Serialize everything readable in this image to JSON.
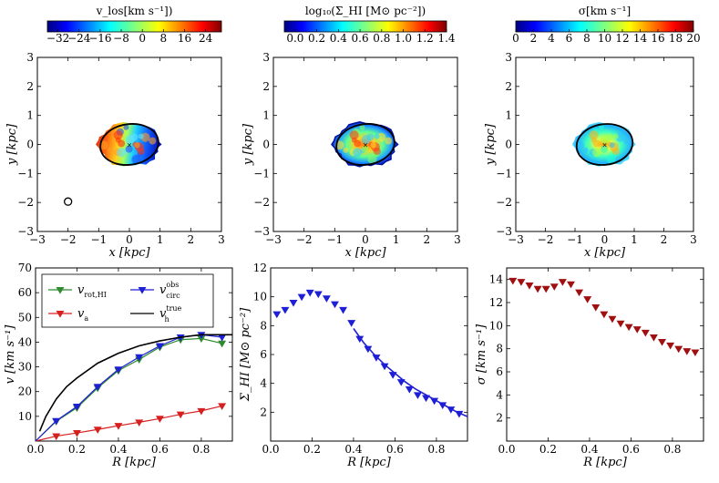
{
  "chart_data": [
    {
      "type": "heatmap",
      "panel": "top-left",
      "colorbar": {
        "label": "v_los[km s⁻¹])",
        "ticks": [
          -32,
          -24,
          -16,
          -8,
          0,
          8,
          16,
          24
        ],
        "range": [
          -36,
          30
        ],
        "colormap": "jet"
      },
      "xlabel": "x [kpc]",
      "ylabel": "y [kpc]",
      "xlim": [
        -3,
        3
      ],
      "ylim": [
        -3,
        3
      ],
      "xticks": [
        -3,
        -2,
        -1,
        0,
        1,
        2,
        3
      ],
      "yticks": [
        -3,
        -2,
        -1,
        0,
        1,
        2,
        3
      ],
      "ellipse": {
        "cx": 0,
        "cy": 0,
        "rx": 0.95,
        "ry": 0.7
      },
      "beam_marker": {
        "x": -2.0,
        "y": -1.97
      }
    },
    {
      "type": "heatmap",
      "panel": "top-middle",
      "colorbar": {
        "label": "log₁₀(Σ_HI [M⊙ pc⁻²])",
        "ticks": [
          0.0,
          0.2,
          0.4,
          0.6,
          0.8,
          1.0,
          1.2,
          1.4
        ],
        "range": [
          -0.1,
          1.4
        ],
        "colormap": "jet"
      },
      "xlabel": "x [kpc]",
      "ylabel": "y [kpc]",
      "xlim": [
        -3,
        3
      ],
      "ylim": [
        -3,
        3
      ],
      "xticks": [
        -3,
        -2,
        -1,
        0,
        1,
        2,
        3
      ],
      "yticks": [
        -3,
        -2,
        -1,
        0,
        1,
        2,
        3
      ],
      "ellipse": {
        "cx": 0,
        "cy": 0,
        "rx": 0.95,
        "ry": 0.7
      }
    },
    {
      "type": "heatmap",
      "panel": "top-right",
      "colorbar": {
        "label": "σ[km s⁻¹]",
        "ticks": [
          0,
          2,
          4,
          6,
          8,
          10,
          12,
          14,
          16,
          18,
          20
        ],
        "range": [
          0,
          20
        ],
        "colormap": "jet"
      },
      "xlabel": "x [kpc]",
      "ylabel": "y [kpc]",
      "xlim": [
        -3,
        3
      ],
      "ylim": [
        -3,
        3
      ],
      "xticks": [
        -3,
        -2,
        -1,
        0,
        1,
        2,
        3
      ],
      "yticks": [
        -3,
        -2,
        -1,
        0,
        1,
        2,
        3
      ],
      "ellipse": {
        "cx": 0,
        "cy": 0,
        "rx": 0.95,
        "ry": 0.7
      }
    },
    {
      "type": "line",
      "panel": "bottom-left",
      "xlabel": "R [kpc]",
      "ylabel": "v [km s⁻¹]",
      "xlim": [
        0,
        0.95
      ],
      "ylim": [
        0,
        70
      ],
      "xticks": [
        0.0,
        0.2,
        0.4,
        0.6,
        0.8
      ],
      "yticks": [
        10,
        20,
        30,
        40,
        50,
        60,
        70
      ],
      "legend_position": "top",
      "series": [
        {
          "name": "v_rot,HI",
          "color": "#2e8b2e",
          "marker": "triangle-down",
          "x": [
            0,
            0.1,
            0.2,
            0.3,
            0.4,
            0.5,
            0.6,
            0.7,
            0.8,
            0.9
          ],
          "y": [
            0,
            8,
            13.5,
            21.5,
            28.5,
            33,
            38,
            41,
            41.5,
            39.5
          ]
        },
        {
          "name": "v_a",
          "color": "#d62020",
          "marker": "triangle-down",
          "x": [
            0,
            0.1,
            0.2,
            0.3,
            0.4,
            0.5,
            0.6,
            0.7,
            0.8,
            0.9
          ],
          "y": [
            0,
            2,
            3.3,
            4.7,
            6.2,
            7.6,
            9.1,
            10.8,
            12.2,
            14.2
          ]
        },
        {
          "name": "v_circ^obs",
          "color": "#1f1fd6",
          "marker": "triangle-down",
          "x": [
            0,
            0.1,
            0.2,
            0.3,
            0.4,
            0.5,
            0.6,
            0.7,
            0.8,
            0.9
          ],
          "y": [
            0,
            8.2,
            14,
            22,
            29,
            34,
            38.5,
            42,
            43,
            42
          ]
        },
        {
          "name": "v_h^true",
          "color": "#000000",
          "marker": "none",
          "x": [
            0.02,
            0.05,
            0.1,
            0.15,
            0.2,
            0.3,
            0.4,
            0.5,
            0.6,
            0.7,
            0.8,
            0.95
          ],
          "y": [
            4,
            10,
            17,
            22,
            25.5,
            31.5,
            35.5,
            38.5,
            40.5,
            42,
            43,
            43
          ]
        }
      ]
    },
    {
      "type": "line",
      "panel": "bottom-middle",
      "xlabel": "R [kpc]",
      "ylabel": "Σ_HI [M⊙ pc⁻²]",
      "xlim": [
        0,
        0.95
      ],
      "ylim": [
        0,
        12
      ],
      "xticks": [
        0.0,
        0.2,
        0.4,
        0.6,
        0.8
      ],
      "yticks": [
        2,
        4,
        6,
        8,
        10,
        12
      ],
      "series": [
        {
          "name": "data",
          "color": "#1f1fd6",
          "marker": "triangle-down",
          "x": [
            0.03,
            0.07,
            0.11,
            0.15,
            0.19,
            0.23,
            0.27,
            0.31,
            0.35,
            0.39,
            0.43,
            0.47,
            0.51,
            0.55,
            0.59,
            0.63,
            0.67,
            0.71,
            0.75,
            0.79,
            0.83,
            0.87,
            0.91
          ],
          "y": [
            8.8,
            9.1,
            9.6,
            10,
            10.3,
            10.2,
            9.9,
            9.5,
            9.1,
            8.2,
            7.1,
            6.4,
            5.8,
            5.2,
            4.6,
            4.1,
            3.6,
            3.2,
            3.0,
            2.8,
            2.5,
            2.2,
            1.9
          ]
        },
        {
          "name": "fit",
          "color": "#1f1fd6",
          "marker": "none",
          "x": [
            0.4,
            0.45,
            0.5,
            0.55,
            0.6,
            0.65,
            0.7,
            0.75,
            0.8,
            0.85,
            0.9,
            0.95
          ],
          "y": [
            7.8,
            6.8,
            6.0,
            5.3,
            4.7,
            4.1,
            3.6,
            3.2,
            2.8,
            2.4,
            2.0,
            1.7
          ]
        }
      ]
    },
    {
      "type": "scatter",
      "panel": "bottom-right",
      "xlabel": "R [kpc]",
      "ylabel": "σ [km s⁻¹]",
      "xlim": [
        0,
        0.95
      ],
      "ylim": [
        0,
        15
      ],
      "xticks": [
        0.0,
        0.2,
        0.4,
        0.6,
        0.8
      ],
      "yticks": [
        2,
        4,
        6,
        8,
        10,
        12,
        14
      ],
      "series": [
        {
          "name": "data",
          "color": "#a01010",
          "marker": "triangle-down",
          "x": [
            0.03,
            0.07,
            0.11,
            0.15,
            0.19,
            0.23,
            0.27,
            0.31,
            0.35,
            0.39,
            0.43,
            0.47,
            0.51,
            0.55,
            0.59,
            0.63,
            0.67,
            0.71,
            0.75,
            0.79,
            0.83,
            0.87,
            0.91
          ],
          "y": [
            13.9,
            13.8,
            13.5,
            13.2,
            13.2,
            13.4,
            13.8,
            13.6,
            12.9,
            12.3,
            11.6,
            11,
            10.6,
            10.2,
            9.9,
            9.7,
            9.4,
            9,
            8.6,
            8.3,
            8,
            7.8,
            7.7
          ]
        }
      ]
    }
  ]
}
